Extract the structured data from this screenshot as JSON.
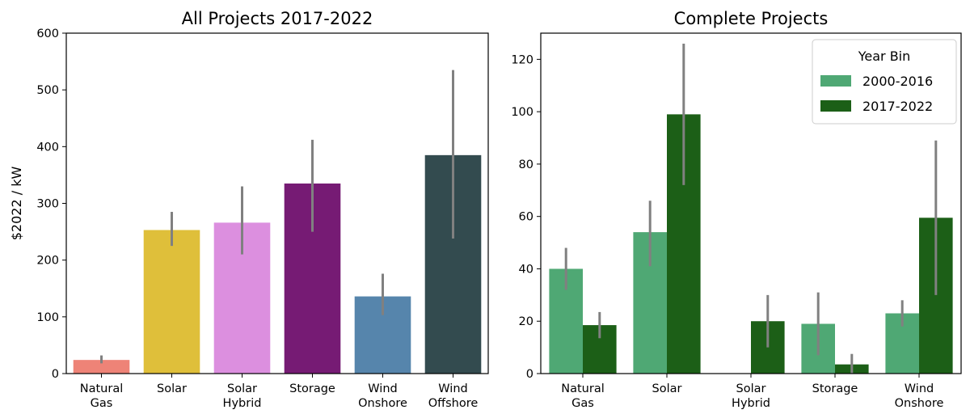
{
  "chart_data": [
    {
      "type": "bar",
      "title": "All Projects 2017-2022",
      "ylabel": "$2022 / kW",
      "ylim": [
        0,
        600
      ],
      "yticks": [
        0,
        100,
        200,
        300,
        400,
        500,
        600
      ],
      "categories": [
        [
          "Natural",
          "Gas"
        ],
        [
          "Solar"
        ],
        [
          "Solar",
          "Hybrid"
        ],
        [
          "Storage"
        ],
        [
          "Wind",
          "Onshore"
        ],
        [
          "Wind",
          "Offshore"
        ]
      ],
      "values": [
        24,
        253,
        266,
        335,
        136,
        385
      ],
      "error_low": [
        18,
        225,
        210,
        250,
        103,
        238
      ],
      "error_high": [
        32,
        285,
        330,
        412,
        176,
        535
      ],
      "colors": [
        "#ee8377",
        "#dfbf3a",
        "#dc8fdf",
        "#761b74",
        "#5685ac",
        "#334b4f"
      ],
      "error_color": "#808080",
      "grid": false
    },
    {
      "type": "bar",
      "title": "Complete Projects",
      "ylabel": "",
      "ylim": [
        0,
        130
      ],
      "yticks": [
        0,
        20,
        40,
        60,
        80,
        100,
        120
      ],
      "categories": [
        [
          "Natural",
          "Gas"
        ],
        [
          "Solar"
        ],
        [
          "Solar",
          "Hybrid"
        ],
        [
          "Storage"
        ],
        [
          "Wind",
          "Onshore"
        ]
      ],
      "legend": {
        "title": "Year Bin",
        "placement": "top-right"
      },
      "series": [
        {
          "name": "2000-2016",
          "color": "#4fa874",
          "values": [
            40,
            54,
            null,
            19,
            23
          ],
          "error_low": [
            32,
            41,
            null,
            7,
            18
          ],
          "error_high": [
            48,
            66,
            null,
            31,
            28
          ]
        },
        {
          "name": "2017-2022",
          "color": "#1c5f17",
          "values": [
            18.5,
            99,
            20,
            3.5,
            59.5
          ],
          "error_low": [
            13.5,
            72,
            10,
            0,
            30
          ],
          "error_high": [
            23.5,
            126,
            30,
            7.5,
            89
          ]
        }
      ],
      "error_color": "#808080",
      "grid": false
    }
  ]
}
